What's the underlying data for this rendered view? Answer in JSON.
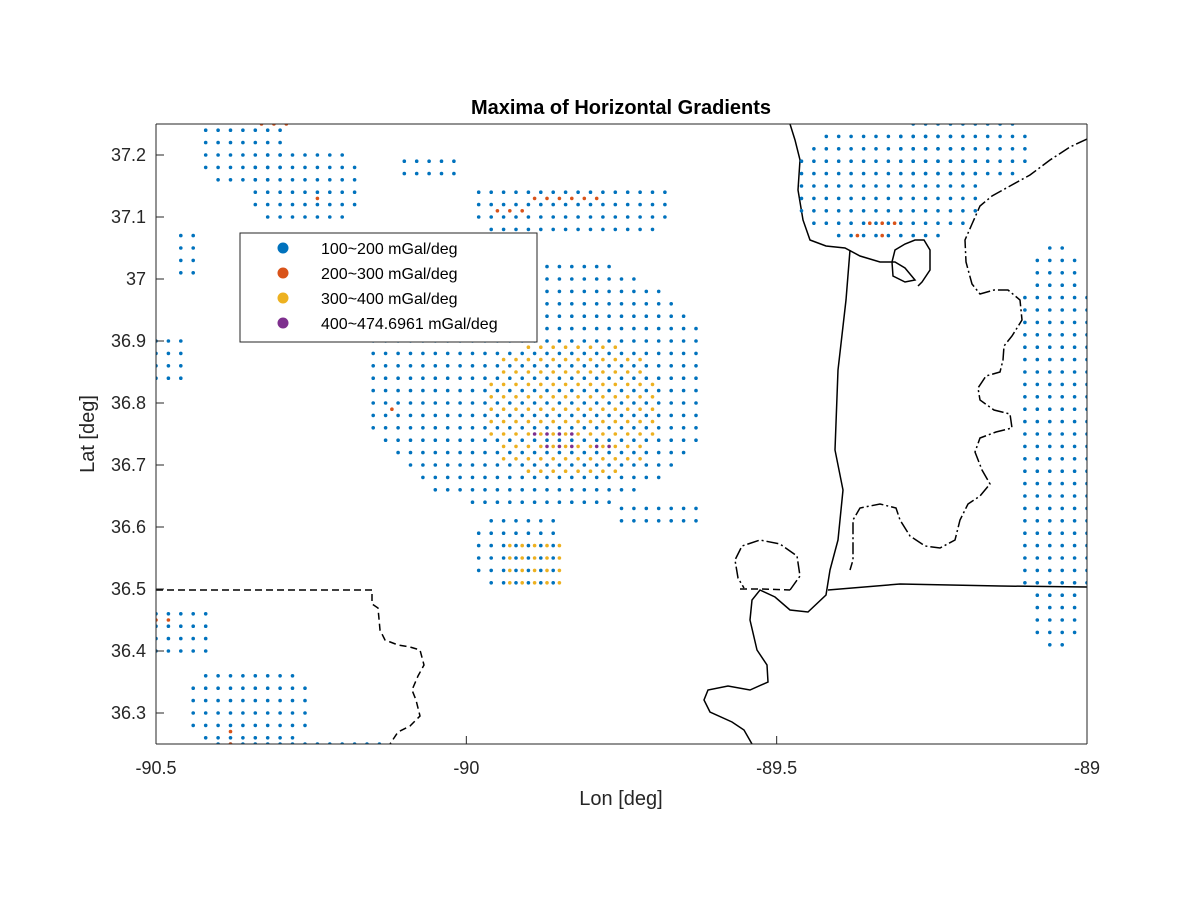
{
  "chart_data": {
    "type": "scatter",
    "title": "Maxima of Horizontal Gradients",
    "xlabel": "Lon [deg]",
    "ylabel": "Lat [deg]",
    "xlim": [
      -90.5,
      -89
    ],
    "ylim": [
      36.25,
      37.25
    ],
    "xticks": [
      -90.5,
      -90,
      -89.5,
      -89
    ],
    "xtick_labels": [
      "-90.5",
      "-90",
      "-89.5",
      "-89"
    ],
    "yticks": [
      36.3,
      36.4,
      36.5,
      36.6,
      36.7,
      36.8,
      36.9,
      37,
      37.1,
      37.2
    ],
    "ytick_labels": [
      "36.3",
      "36.4",
      "36.5",
      "36.6",
      "36.7",
      "36.8",
      "36.9",
      "37",
      "37.1",
      "37.2"
    ],
    "grid": false,
    "legend_position": "upper-left",
    "series": [
      {
        "name": "100~200 mGal/deg",
        "color": "#0072BD",
        "marker": "dot",
        "description": "scattered grid points at ~0.02 deg spacing",
        "clusters": [
          {
            "lon": [
              -90.42,
              -90.3
            ],
            "lat": [
              37.16,
              37.25
            ]
          },
          {
            "lon": [
              -90.34,
              -90.18
            ],
            "lat": [
              37.1,
              37.2
            ]
          },
          {
            "lon": [
              -90.1,
              -90.02
            ],
            "lat": [
              37.17,
              37.2
            ]
          },
          {
            "lon": [
              -89.98,
              -89.68
            ],
            "lat": [
              37.08,
              37.15
            ]
          },
          {
            "lon": [
              -90.15,
              -89.62
            ],
            "lat": [
              36.64,
              37.02
            ]
          },
          {
            "lon": [
              -89.98,
              -89.85
            ],
            "lat": [
              36.51,
              36.61
            ]
          },
          {
            "lon": [
              -89.75,
              -89.62
            ],
            "lat": [
              36.61,
              36.63
            ]
          },
          {
            "lon": [
              -89.46,
              -89.18
            ],
            "lat": [
              37.07,
              37.24
            ]
          },
          {
            "lon": [
              -89.3,
              -89.1
            ],
            "lat": [
              37.17,
              37.25
            ]
          },
          {
            "lon": [
              -90.46,
              -90.44
            ],
            "lat": [
              37.01,
              37.07
            ]
          },
          {
            "lon": [
              -90.5,
              -90.46
            ],
            "lat": [
              36.84,
              36.91
            ]
          },
          {
            "lon": [
              -90.5,
              -90.42
            ],
            "lat": [
              36.4,
              36.47
            ]
          },
          {
            "lon": [
              -90.44,
              -90.26
            ],
            "lat": [
              36.26,
              36.36
            ]
          },
          {
            "lon": [
              -90.4,
              -90.14
            ],
            "lat": [
              36.25,
              36.26
            ]
          },
          {
            "lon": [
              -89.1,
              -89
            ],
            "lat": [
              36.41,
              37.06
            ]
          }
        ]
      },
      {
        "name": "200~300 mGal/deg",
        "color": "#D95319",
        "marker": "dot",
        "points": [
          [
            -90.33,
            37.25
          ],
          [
            -90.31,
            37.25
          ],
          [
            -90.29,
            37.25
          ],
          [
            -90.24,
            37.13
          ],
          [
            -89.95,
            37.11
          ],
          [
            -89.93,
            37.11
          ],
          [
            -89.91,
            37.11
          ],
          [
            -89.89,
            37.13
          ],
          [
            -89.87,
            37.13
          ],
          [
            -89.85,
            37.13
          ],
          [
            -89.83,
            37.13
          ],
          [
            -89.81,
            37.13
          ],
          [
            -89.79,
            37.13
          ],
          [
            -89.37,
            37.07
          ],
          [
            -89.33,
            37.07
          ],
          [
            -89.35,
            37.09
          ],
          [
            -89.33,
            37.09
          ],
          [
            -89.31,
            37.09
          ],
          [
            -90.12,
            36.79
          ],
          [
            -90.5,
            36.45
          ],
          [
            -90.48,
            36.45
          ],
          [
            -90.38,
            36.27
          ],
          [
            -90.38,
            36.25
          ]
        ]
      },
      {
        "name": "300~400 mGal/deg",
        "color": "#EDB120",
        "marker": "dot",
        "clusters": [
          {
            "lon": [
              -89.96,
              -89.7
            ],
            "lat": [
              36.69,
              36.89
            ]
          },
          {
            "lon": [
              -89.93,
              -89.85
            ],
            "lat": [
              36.51,
              36.57
            ]
          }
        ]
      },
      {
        "name": "400~474.6961 mGal/deg",
        "color": "#7E2F8E",
        "marker": "dot",
        "points": [
          [
            -89.89,
            36.75
          ],
          [
            -89.87,
            36.75
          ],
          [
            -89.85,
            36.75
          ],
          [
            -89.83,
            36.75
          ],
          [
            -89.87,
            36.73
          ],
          [
            -89.85,
            36.73
          ],
          [
            -89.83,
            36.73
          ],
          [
            -89.79,
            36.73
          ],
          [
            -89.77,
            36.73
          ]
        ]
      }
    ],
    "overlays": [
      {
        "name": "state-border",
        "style": "dashed",
        "color": "#000000"
      },
      {
        "name": "river",
        "style": "solid",
        "color": "#000000"
      },
      {
        "name": "river-2",
        "style": "dash-dot",
        "color": "#000000"
      }
    ]
  }
}
